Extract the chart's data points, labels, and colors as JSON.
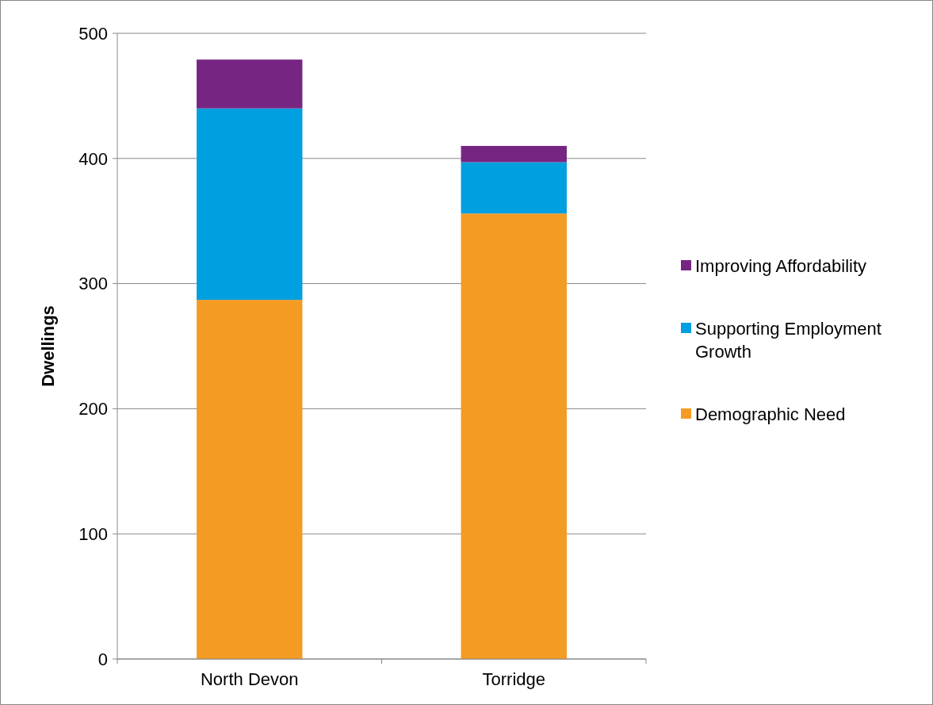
{
  "chart_data": {
    "type": "bar",
    "stacked": true,
    "ylabel": "Dwellings",
    "categories": [
      "North Devon",
      "Torridge"
    ],
    "series": [
      {
        "name": "Demographic Need",
        "color": "#f49b23",
        "values": [
          287,
          356
        ]
      },
      {
        "name": "Supporting Employment Growth",
        "color": "#009fdf",
        "values": [
          153,
          41
        ]
      },
      {
        "name": "Improving Affordability",
        "color": "#772583",
        "values": [
          39,
          13
        ]
      }
    ],
    "ylim": [
      0,
      500
    ],
    "yticks": [
      0,
      100,
      200,
      300,
      400,
      500
    ],
    "grid": "y",
    "legend": "right"
  }
}
